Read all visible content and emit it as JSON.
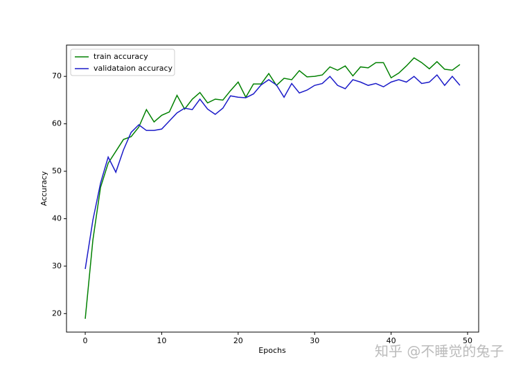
{
  "chart_data": {
    "type": "line",
    "xlabel": "Epochs",
    "ylabel": "Accuracy",
    "x": [
      0,
      1,
      2,
      3,
      4,
      5,
      6,
      7,
      8,
      9,
      10,
      11,
      12,
      13,
      14,
      15,
      16,
      17,
      18,
      19,
      20,
      21,
      22,
      23,
      24,
      25,
      26,
      27,
      28,
      29,
      30,
      31,
      32,
      33,
      34,
      35,
      36,
      37,
      38,
      39,
      40,
      41,
      42,
      43,
      44,
      45,
      46,
      47,
      48,
      49
    ],
    "series": [
      {
        "name": "train accuracy",
        "color": "#008000",
        "values": [
          18.9,
          35.5,
          46.6,
          51.7,
          54.2,
          56.7,
          57.3,
          59.3,
          63,
          60.4,
          61.8,
          62.5,
          66,
          63.1,
          65.2,
          66.6,
          64.4,
          65.2,
          65,
          67,
          68.8,
          65.6,
          68.4,
          68.4,
          70.6,
          68.1,
          69.6,
          69.3,
          71.2,
          69.9,
          70,
          70.3,
          72,
          71.3,
          72.2,
          70.1,
          72,
          71.8,
          72.9,
          72.9,
          69.7,
          70.7,
          72.2,
          73.9,
          72.9,
          71.6,
          73.1,
          71.5,
          71.3,
          72.5
        ]
      },
      {
        "name": "validataion accuracy",
        "color": "#1a1ac8",
        "values": [
          29.4,
          39.7,
          47.5,
          53,
          49.8,
          54.5,
          58.2,
          59.8,
          58.6,
          58.6,
          58.9,
          60.6,
          62.3,
          63.3,
          63,
          65.2,
          63.1,
          62,
          63.3,
          65.9,
          65.6,
          65.5,
          66.3,
          68.2,
          69.3,
          68.2,
          65.6,
          68.5,
          66.5,
          67.1,
          68.1,
          68.5,
          70,
          68.1,
          67.4,
          69.3,
          68.8,
          68.1,
          68.5,
          67.8,
          68.8,
          69.3,
          68.8,
          70,
          68.5,
          68.8,
          70.3,
          68.1,
          70,
          68.1
        ]
      }
    ],
    "xlim": [
      -2.45,
      51.45
    ],
    "xticks": [
      0,
      10,
      20,
      30,
      40,
      50
    ],
    "ylim": [
      16.1,
      76.6
    ],
    "yticks": [
      20,
      30,
      40,
      50,
      60,
      70
    ],
    "legend": "upper left",
    "grid": false
  },
  "watermark": "知乎 @不睡觉的兔子"
}
